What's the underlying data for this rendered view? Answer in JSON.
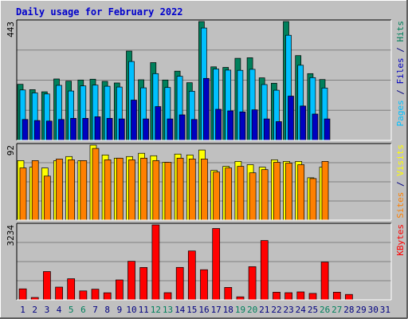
{
  "title": "Daily usage for February 2022",
  "colors": {
    "background": "#c0c0c0",
    "plot_bg": "#c0c0c0",
    "frame": "#000000",
    "grid": "#808080",
    "title": "#0000cc",
    "day_normal": "#000080",
    "day_weekend": "#00805c",
    "hits": "#00805c",
    "files": "#00c0ff",
    "pages": "#0000c0",
    "visits": "#ffff00",
    "sites": "#ff8000",
    "kbytes": "#ff0000"
  },
  "chart_data": [
    {
      "type": "bar",
      "panel": "hits-files-pages",
      "ymax_label": "443",
      "ylim": [
        0,
        443
      ],
      "side_labels": [
        {
          "text": "Pages",
          "color": "#00c0ff"
        },
        {
          "text": " / ",
          "color": "#000080"
        },
        {
          "text": "Files",
          "color": "#0000c0"
        },
        {
          "text": " / ",
          "color": "#000080"
        },
        {
          "text": "Hits",
          "color": "#00805c"
        }
      ],
      "series": [
        {
          "name": "Hits",
          "values": [
            209,
            189,
            181,
            229,
            221,
            225,
            228,
            220,
            214,
            333,
            226,
            290,
            225,
            258,
            215,
            443,
            274,
            272,
            306,
            308,
            233,
            213,
            443,
            316,
            249,
            227,
            0,
            0,
            0,
            0,
            0
          ]
        },
        {
          "name": "Files",
          "values": [
            188,
            177,
            173,
            205,
            184,
            203,
            206,
            202,
            199,
            294,
            196,
            249,
            197,
            239,
            183,
            419,
            266,
            262,
            261,
            265,
            208,
            187,
            392,
            280,
            234,
            195,
            0,
            0,
            0,
            0,
            0
          ]
        },
        {
          "name": "Pages",
          "values": [
            78,
            74,
            72,
            78,
            82,
            82,
            88,
            82,
            80,
            150,
            80,
            126,
            80,
            95,
            78,
            231,
            116,
            110,
            106,
            114,
            80,
            70,
            165,
            128,
            98,
            80,
            0,
            0,
            0,
            0,
            0
          ]
        }
      ]
    },
    {
      "type": "bar",
      "panel": "visits-sites",
      "ymax_label": "92",
      "ylim": [
        0,
        92
      ],
      "side_labels": [
        {
          "text": "Sites",
          "color": "#ff8000"
        },
        {
          "text": " / ",
          "color": "#000080"
        },
        {
          "text": "Visits",
          "color": "#ffff00"
        }
      ],
      "series": [
        {
          "name": "Visits",
          "values": [
            73,
            65,
            64,
            73,
            78,
            73,
            92,
            80,
            76,
            78,
            82,
            79,
            71,
            81,
            80,
            86,
            61,
            66,
            72,
            68,
            65,
            74,
            72,
            72,
            52,
            65,
            0,
            0,
            0,
            0,
            0
          ]
        },
        {
          "name": "Sites",
          "values": [
            64,
            73,
            54,
            75,
            74,
            73,
            88,
            74,
            76,
            74,
            76,
            73,
            71,
            76,
            75,
            75,
            59,
            64,
            66,
            58,
            62,
            71,
            70,
            68,
            51,
            72,
            0,
            0,
            0,
            0,
            0
          ]
        }
      ]
    },
    {
      "type": "bar",
      "panel": "kbytes",
      "ymax_label": "3234",
      "ylim": [
        0,
        3234
      ],
      "side_labels": [
        {
          "text": "KBytes",
          "color": "#ff0000"
        }
      ],
      "series": [
        {
          "name": "KBytes",
          "values": [
            475,
            103,
            1220,
            552,
            910,
            387,
            460,
            307,
            861,
            1665,
            1396,
            3234,
            310,
            1400,
            2110,
            1300,
            3080,
            535,
            130,
            1430,
            2560,
            330,
            310,
            345,
            280,
            1632,
            330,
            235,
            0,
            0,
            0
          ]
        }
      ]
    }
  ],
  "x_categories": [
    "1",
    "2",
    "3",
    "4",
    "5",
    "6",
    "7",
    "8",
    "9",
    "10",
    "11",
    "12",
    "13",
    "14",
    "15",
    "16",
    "17",
    "18",
    "19",
    "20",
    "21",
    "22",
    "23",
    "24",
    "25",
    "26",
    "27",
    "28",
    "29",
    "30",
    "31"
  ],
  "weekend_days": [
    "5",
    "6",
    "12",
    "13",
    "19",
    "20",
    "26",
    "27"
  ]
}
